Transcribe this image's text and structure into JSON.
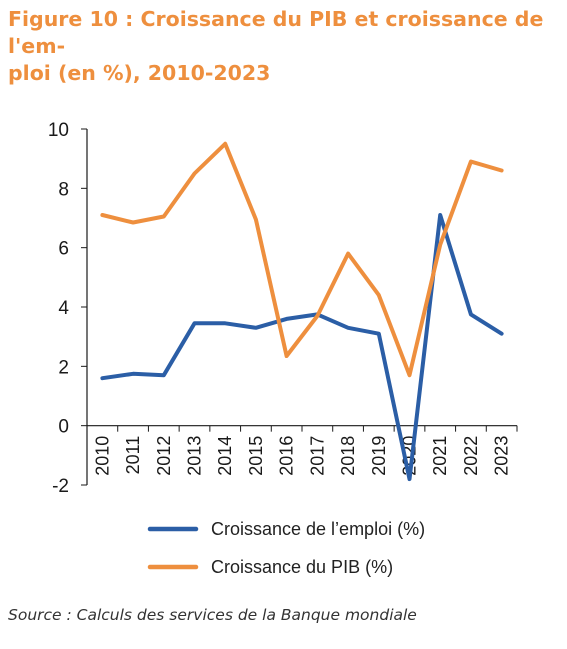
{
  "title_lines": [
    "Figure 10 : Croissance du PIB et croissance de l'em-",
    "ploi (en %), 2010-2023"
  ],
  "source": "Source : Calculs des services de la Banque mondiale",
  "chart_data": {
    "type": "line",
    "title": "Figure 10 : Croissance du PIB et croissance de l'emploi (en %), 2010-2023",
    "xlabel": "",
    "ylabel": "",
    "ylim": [
      -2,
      10
    ],
    "yticks": [
      -2,
      0,
      2,
      4,
      6,
      8,
      10
    ],
    "grid": false,
    "legend_position": "bottom",
    "categories": [
      "2010",
      "2011",
      "2012",
      "2013",
      "2014",
      "2015",
      "2016",
      "2017",
      "2018",
      "2019",
      "2020",
      "2021",
      "2022",
      "2023"
    ],
    "series": [
      {
        "name": "Croissance de l’emploi (%)",
        "color": "#2b5ea6",
        "values": [
          1.6,
          1.75,
          1.7,
          3.45,
          3.45,
          3.3,
          3.6,
          3.75,
          3.3,
          3.1,
          -1.8,
          7.1,
          3.75,
          3.1
        ]
      },
      {
        "name": "Croissance du PIB (%)",
        "color": "#ee8f3e",
        "values": [
          7.1,
          6.85,
          7.05,
          8.5,
          9.5,
          6.95,
          2.35,
          3.7,
          5.8,
          4.4,
          1.7,
          6.1,
          8.9,
          8.6
        ]
      }
    ]
  }
}
